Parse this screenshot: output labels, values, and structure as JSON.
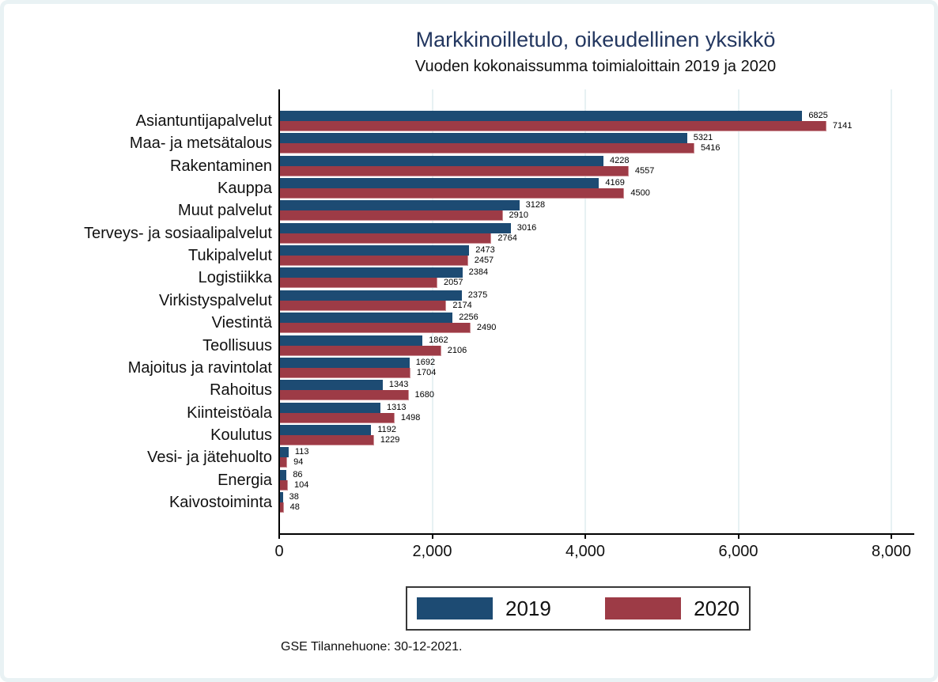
{
  "figure": {
    "background": "#ffffff",
    "frame_color": "#e9f2f4"
  },
  "header": {
    "title": "Markkinoilletulo, oikeudellinen yksikkö",
    "title_color": "#233760",
    "subtitle": "Vuoden kokonaissumma toimialoittain 2019 ja 2020"
  },
  "chart_data": {
    "type": "bar",
    "orientation": "horizontal",
    "title": "Markkinoilletulo, oikeudellinen yksikkö",
    "subtitle": "Vuoden kokonaissumma toimialoittain 2019 ja 2020",
    "categories": [
      "Asiantuntijapalvelut",
      "Maa- ja metsätalous",
      "Rakentaminen",
      "Kauppa",
      "Muut palvelut",
      "Terveys- ja sosiaalipalvelut",
      "Tukipalvelut",
      "Logistiikka",
      "Virkistyspalvelut",
      "Viestintä",
      "Teollisuus",
      "Majoitus ja ravintolat",
      "Rahoitus",
      "Kiinteistöala",
      "Koulutus",
      "Vesi- ja jätehuolto",
      "Energia",
      "Kaivostoiminta"
    ],
    "series": [
      {
        "name": "2019",
        "color": "#1d4b73",
        "values": [
          6825,
          5321,
          4228,
          4169,
          3128,
          3016,
          2473,
          2384,
          2375,
          2256,
          1862,
          1692,
          1343,
          1313,
          1192,
          113,
          86,
          38
        ]
      },
      {
        "name": "2020",
        "color": "#9d3b46",
        "outline_color": "#cb8d93",
        "values": [
          7141,
          5416,
          4557,
          4500,
          2910,
          2764,
          2457,
          2057,
          2174,
          2490,
          2106,
          1704,
          1680,
          1498,
          1229,
          94,
          104,
          48
        ]
      }
    ],
    "xlim": [
      0,
      8290
    ],
    "x_ticks": [
      {
        "value": 0,
        "label": "0"
      },
      {
        "value": 2000,
        "label": "2,000"
      },
      {
        "value": 4000,
        "label": "4,000"
      },
      {
        "value": 6000,
        "label": "6,000"
      },
      {
        "value": 8000,
        "label": "8,000"
      }
    ],
    "grid": true,
    "gridline_color": "#e7f1f3",
    "value_labels": true,
    "legend_position": "bottom"
  },
  "legend": {
    "items": [
      {
        "label": "2019",
        "color": "#1d4b73"
      },
      {
        "label": "2020",
        "color": "#9d3b46"
      }
    ]
  },
  "footnote": "GSE Tilannehuone: 30-12-2021."
}
